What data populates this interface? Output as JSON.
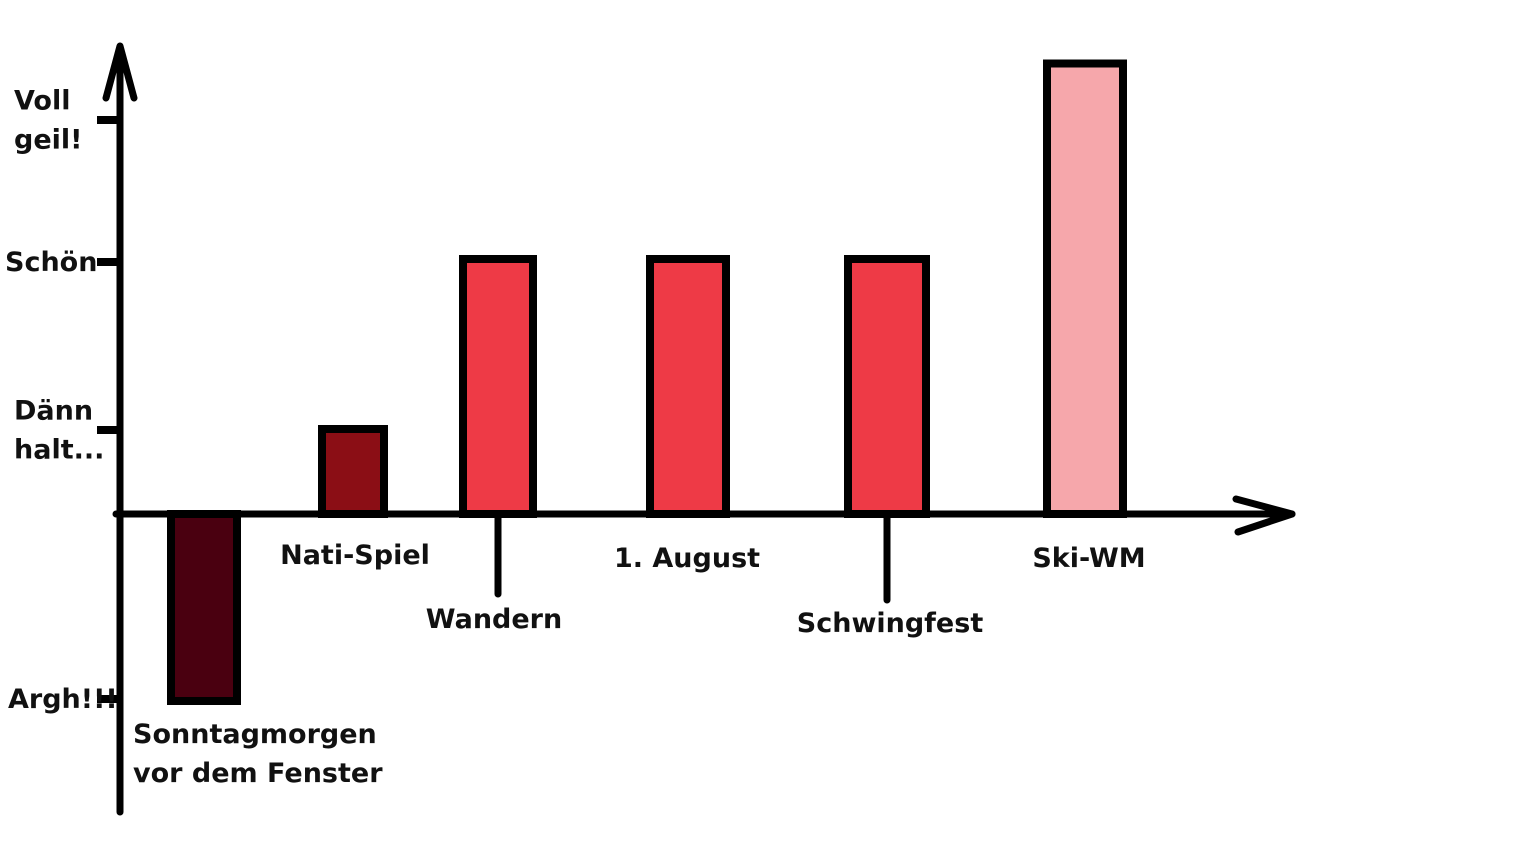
{
  "chart_data": {
    "type": "bar",
    "title": "",
    "xlabel": "",
    "ylabel": "",
    "y_ticks": [
      {
        "value": -2,
        "label_lines": [
          "Argh!!!"
        ]
      },
      {
        "value": 1,
        "label_lines": [
          "Dänn",
          "halt..."
        ]
      },
      {
        "value": 3,
        "label_lines": [
          "Schön"
        ]
      },
      {
        "value": 4.5,
        "label_lines": [
          "Voll",
          "geil!"
        ]
      }
    ],
    "ylim": [
      -3.5,
      5.3
    ],
    "grid": false,
    "legend": "none",
    "bars": [
      {
        "category_lines": [
          "Sonntagmorgen",
          "vor dem Fenster"
        ],
        "value": -2.2,
        "color": "#4a0010",
        "label_pos": "below",
        "leader": false
      },
      {
        "category_lines": [
          "Nati-Spiel"
        ],
        "value": 1.0,
        "color": "#8b0e15",
        "label_pos": "below",
        "leader": false
      },
      {
        "category_lines": [
          "Wandern"
        ],
        "value": 3.0,
        "color": "#ee3a46",
        "label_pos": "below",
        "leader": true
      },
      {
        "category_lines": [
          "1. August"
        ],
        "value": 3.0,
        "color": "#ee3a46",
        "label_pos": "below",
        "leader": false
      },
      {
        "category_lines": [
          "Schwingfest"
        ],
        "value": 3.0,
        "color": "#ee3a46",
        "label_pos": "below",
        "leader": true
      },
      {
        "category_lines": [
          "Ski-WM"
        ],
        "value": 5.3,
        "color": "#f6a7ab",
        "label_pos": "below",
        "leader": false
      }
    ]
  }
}
